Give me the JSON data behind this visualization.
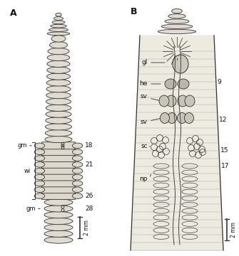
{
  "bg_color": "#f5f5f0",
  "label_A": "A",
  "label_B": "B",
  "label_gm1": "gm",
  "label_gm2": "gm",
  "label_wi": "wi",
  "label_18": "18",
  "label_21": "21",
  "label_26": "26",
  "label_28": "28",
  "label_gl": "gl",
  "label_he": "he",
  "label_sv1": "sv",
  "label_sv2": "sv",
  "label_sc": "sc",
  "label_np": "np",
  "label_9": "9",
  "label_12": "12",
  "label_15": "15",
  "label_17": "17",
  "scale_A": "2 mm",
  "scale_B": "2 mm",
  "lc": "#333333",
  "seg_fc": "#e0dbd0",
  "body_fc": "#eae6dc"
}
